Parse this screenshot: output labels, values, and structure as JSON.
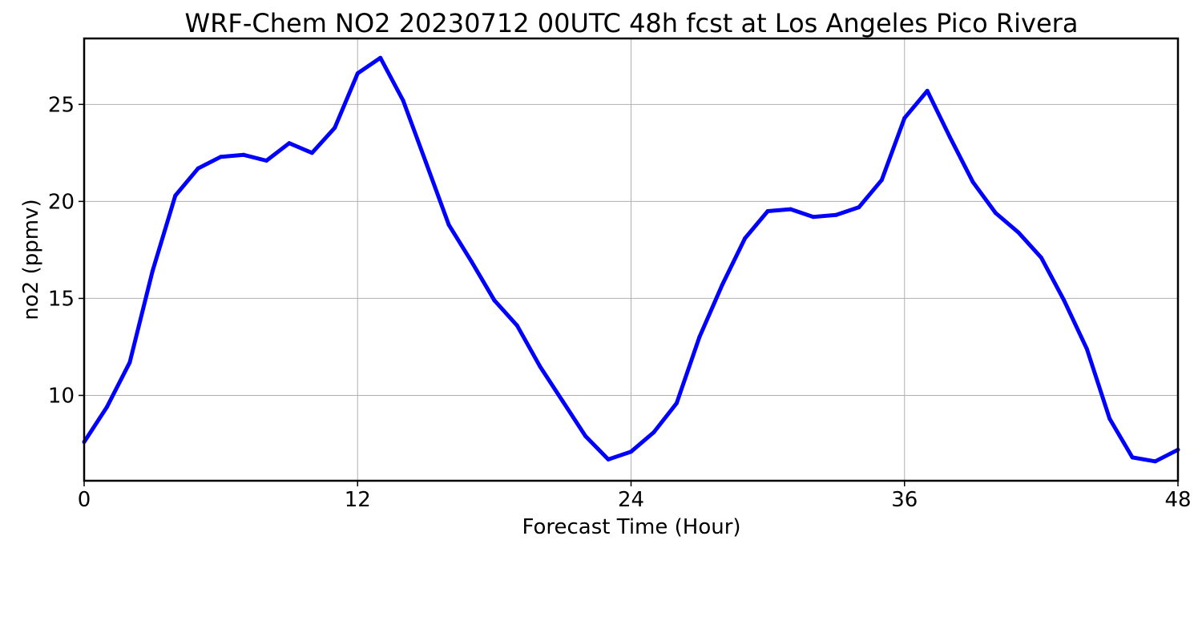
{
  "chart_data": {
    "type": "line",
    "title": "WRF-Chem NO2  20230712 00UTC 48h fcst at Los Angeles Pico Rivera",
    "xlabel": "Forecast Time (Hour)",
    "ylabel": "no2  (ppmv)",
    "xlim": [
      0,
      48
    ],
    "ylim": [
      5.6,
      28.4
    ],
    "xticks": [
      0,
      12,
      24,
      36,
      48
    ],
    "yticks": [
      10,
      15,
      20,
      25
    ],
    "grid": true,
    "series": [
      {
        "color": "#0000ff",
        "x": [
          0,
          1,
          2,
          3,
          4,
          5,
          6,
          7,
          8,
          9,
          10,
          11,
          12,
          13,
          14,
          15,
          16,
          17,
          18,
          19,
          20,
          21,
          22,
          23,
          24,
          25,
          26,
          27,
          28,
          29,
          30,
          31,
          32,
          33,
          34,
          35,
          36,
          37,
          38,
          39,
          40,
          41,
          42,
          43,
          44,
          45,
          46,
          47,
          48
        ],
        "values": [
          7.6,
          9.4,
          11.7,
          16.4,
          20.3,
          21.7,
          22.3,
          22.4,
          22.1,
          23.0,
          22.5,
          23.8,
          26.6,
          27.4,
          25.2,
          22.0,
          18.8,
          16.9,
          14.9,
          13.6,
          11.5,
          9.7,
          7.9,
          6.7,
          7.1,
          8.1,
          9.6,
          13.0,
          15.7,
          18.1,
          19.5,
          19.6,
          19.2,
          19.3,
          19.7,
          21.1,
          24.3,
          25.7,
          23.3,
          21.0,
          19.4,
          18.4,
          17.1,
          14.9,
          12.4,
          8.8,
          6.8,
          6.6,
          7.2
        ]
      }
    ]
  }
}
